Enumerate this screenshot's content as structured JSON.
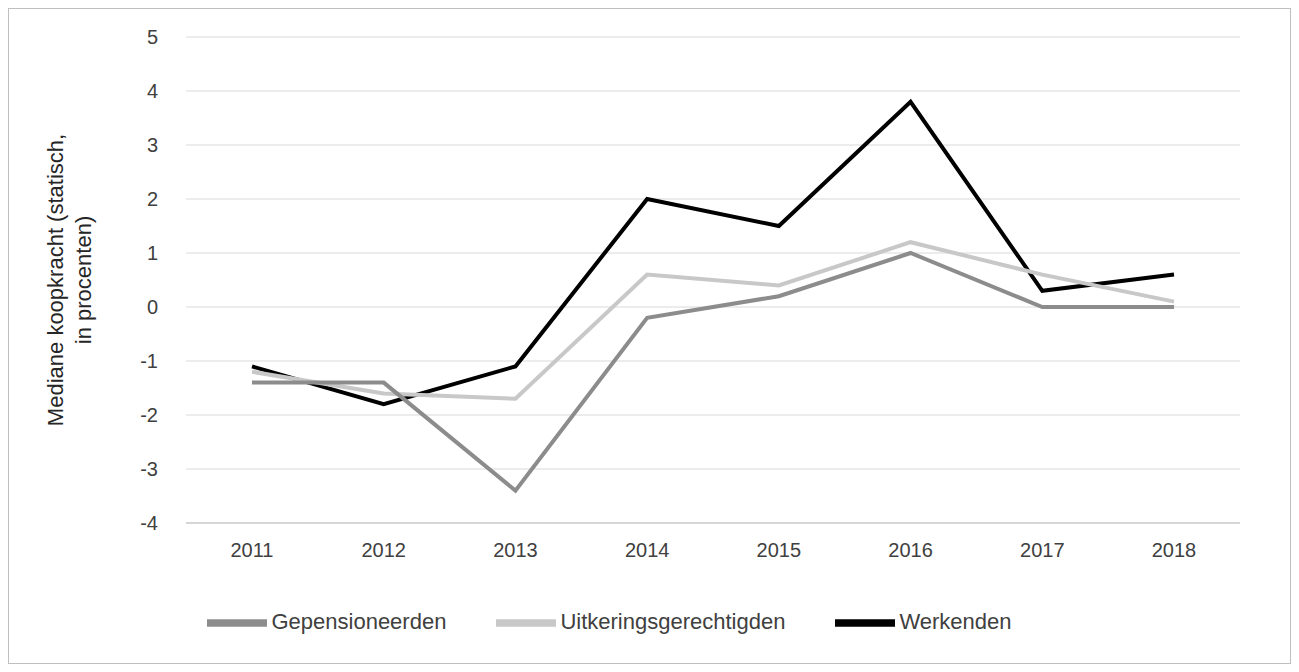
{
  "chart_data": {
    "type": "line",
    "y_label": "Mediane koopkracht (statisch, in procenten)",
    "categories": [
      "2011",
      "2012",
      "2013",
      "2014",
      "2015",
      "2016",
      "2017",
      "2018"
    ],
    "series": [
      {
        "name": "Werkenden",
        "color": "#000000",
        "values": [
          -1.1,
          -1.8,
          -1.1,
          2.0,
          1.5,
          3.8,
          0.3,
          0.6
        ]
      },
      {
        "name": "Uitkeringsgerechtigden",
        "color": "#c8c8c8",
        "values": [
          -1.2,
          -1.6,
          -1.7,
          0.6,
          0.4,
          1.2,
          0.6,
          0.1
        ]
      },
      {
        "name": "Gepensioneerden",
        "color": "#8c8c8c",
        "values": [
          -1.4,
          -1.4,
          -3.4,
          -0.2,
          0.2,
          1.0,
          0.0,
          0.0
        ]
      }
    ],
    "ylim": [
      -4,
      5
    ],
    "yticks": [
      -4,
      -3,
      -2,
      -1,
      0,
      1,
      2,
      3,
      4,
      5
    ],
    "grid": true,
    "legend": "bottom"
  }
}
